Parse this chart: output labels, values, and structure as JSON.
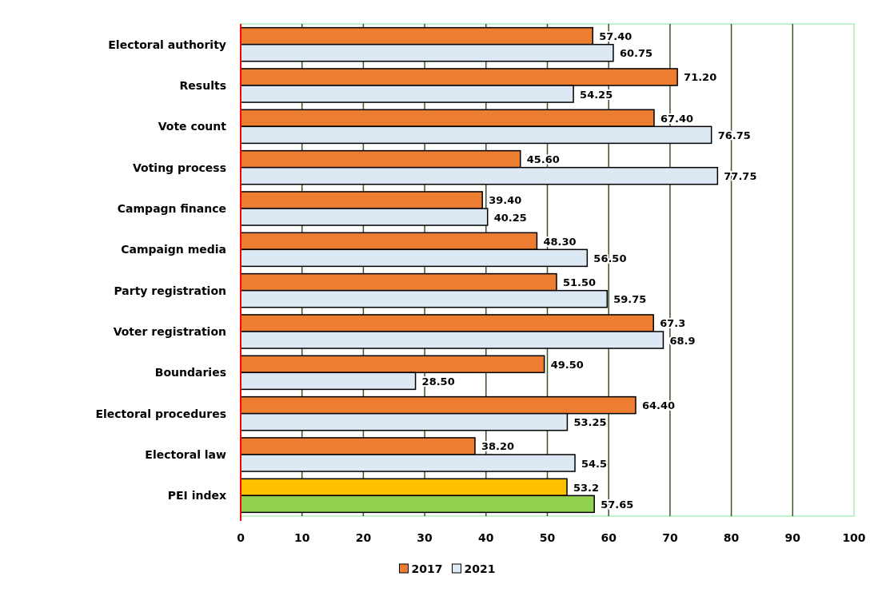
{
  "chart_data": {
    "type": "bar",
    "orientation": "horizontal",
    "categories": [
      "Electoral authority",
      "Results ",
      "Vote count",
      "Voting process",
      "Campagn finance",
      "Campaign media",
      "Party registration",
      "Voter registration",
      "Boundaries",
      "Electoral procedures",
      "Electoral law",
      "PEI index"
    ],
    "series": [
      {
        "name": "2017",
        "color": "#ed7d31",
        "colors": [
          "#ed7d31",
          "#ed7d31",
          "#ed7d31",
          "#ed7d31",
          "#ed7d31",
          "#ed7d31",
          "#ed7d31",
          "#ed7d31",
          "#ed7d31",
          "#ed7d31",
          "#ed7d31",
          "#ffc000"
        ],
        "values": [
          57.4,
          71.2,
          67.4,
          45.6,
          39.4,
          48.3,
          51.5,
          67.3,
          49.5,
          64.4,
          38.2,
          53.2
        ],
        "value_labels": [
          "57.40",
          "71.20",
          "67.40",
          "45.60",
          "39.40",
          "48.30",
          "51.50",
          "67.3",
          "49.50",
          "64.40",
          "38.20",
          "53.2"
        ]
      },
      {
        "name": "2021",
        "color": "#dde8f5",
        "colors": [
          "#dde8f5",
          "#dde8f5",
          "#dde8f5",
          "#dde8f5",
          "#dde8f5",
          "#dde8f5",
          "#dde8f5",
          "#dde8f5",
          "#dde8f5",
          "#dde8f5",
          "#dde8f5",
          "#92d050"
        ],
        "values": [
          60.75,
          54.25,
          76.75,
          77.75,
          40.25,
          56.5,
          59.75,
          68.9,
          28.5,
          53.25,
          54.5,
          57.65
        ],
        "value_labels": [
          "60.75",
          "54.25",
          "76.75",
          "77.75",
          "40.25",
          "56.50",
          "59.75",
          "68.9",
          "28.50",
          "53.25",
          "54.5",
          "57.65"
        ]
      }
    ],
    "xlim": [
      0,
      100
    ],
    "xticks": [
      0,
      10,
      20,
      30,
      40,
      50,
      60,
      70,
      80,
      90,
      100
    ],
    "grid": "x",
    "legend": "bottom"
  }
}
